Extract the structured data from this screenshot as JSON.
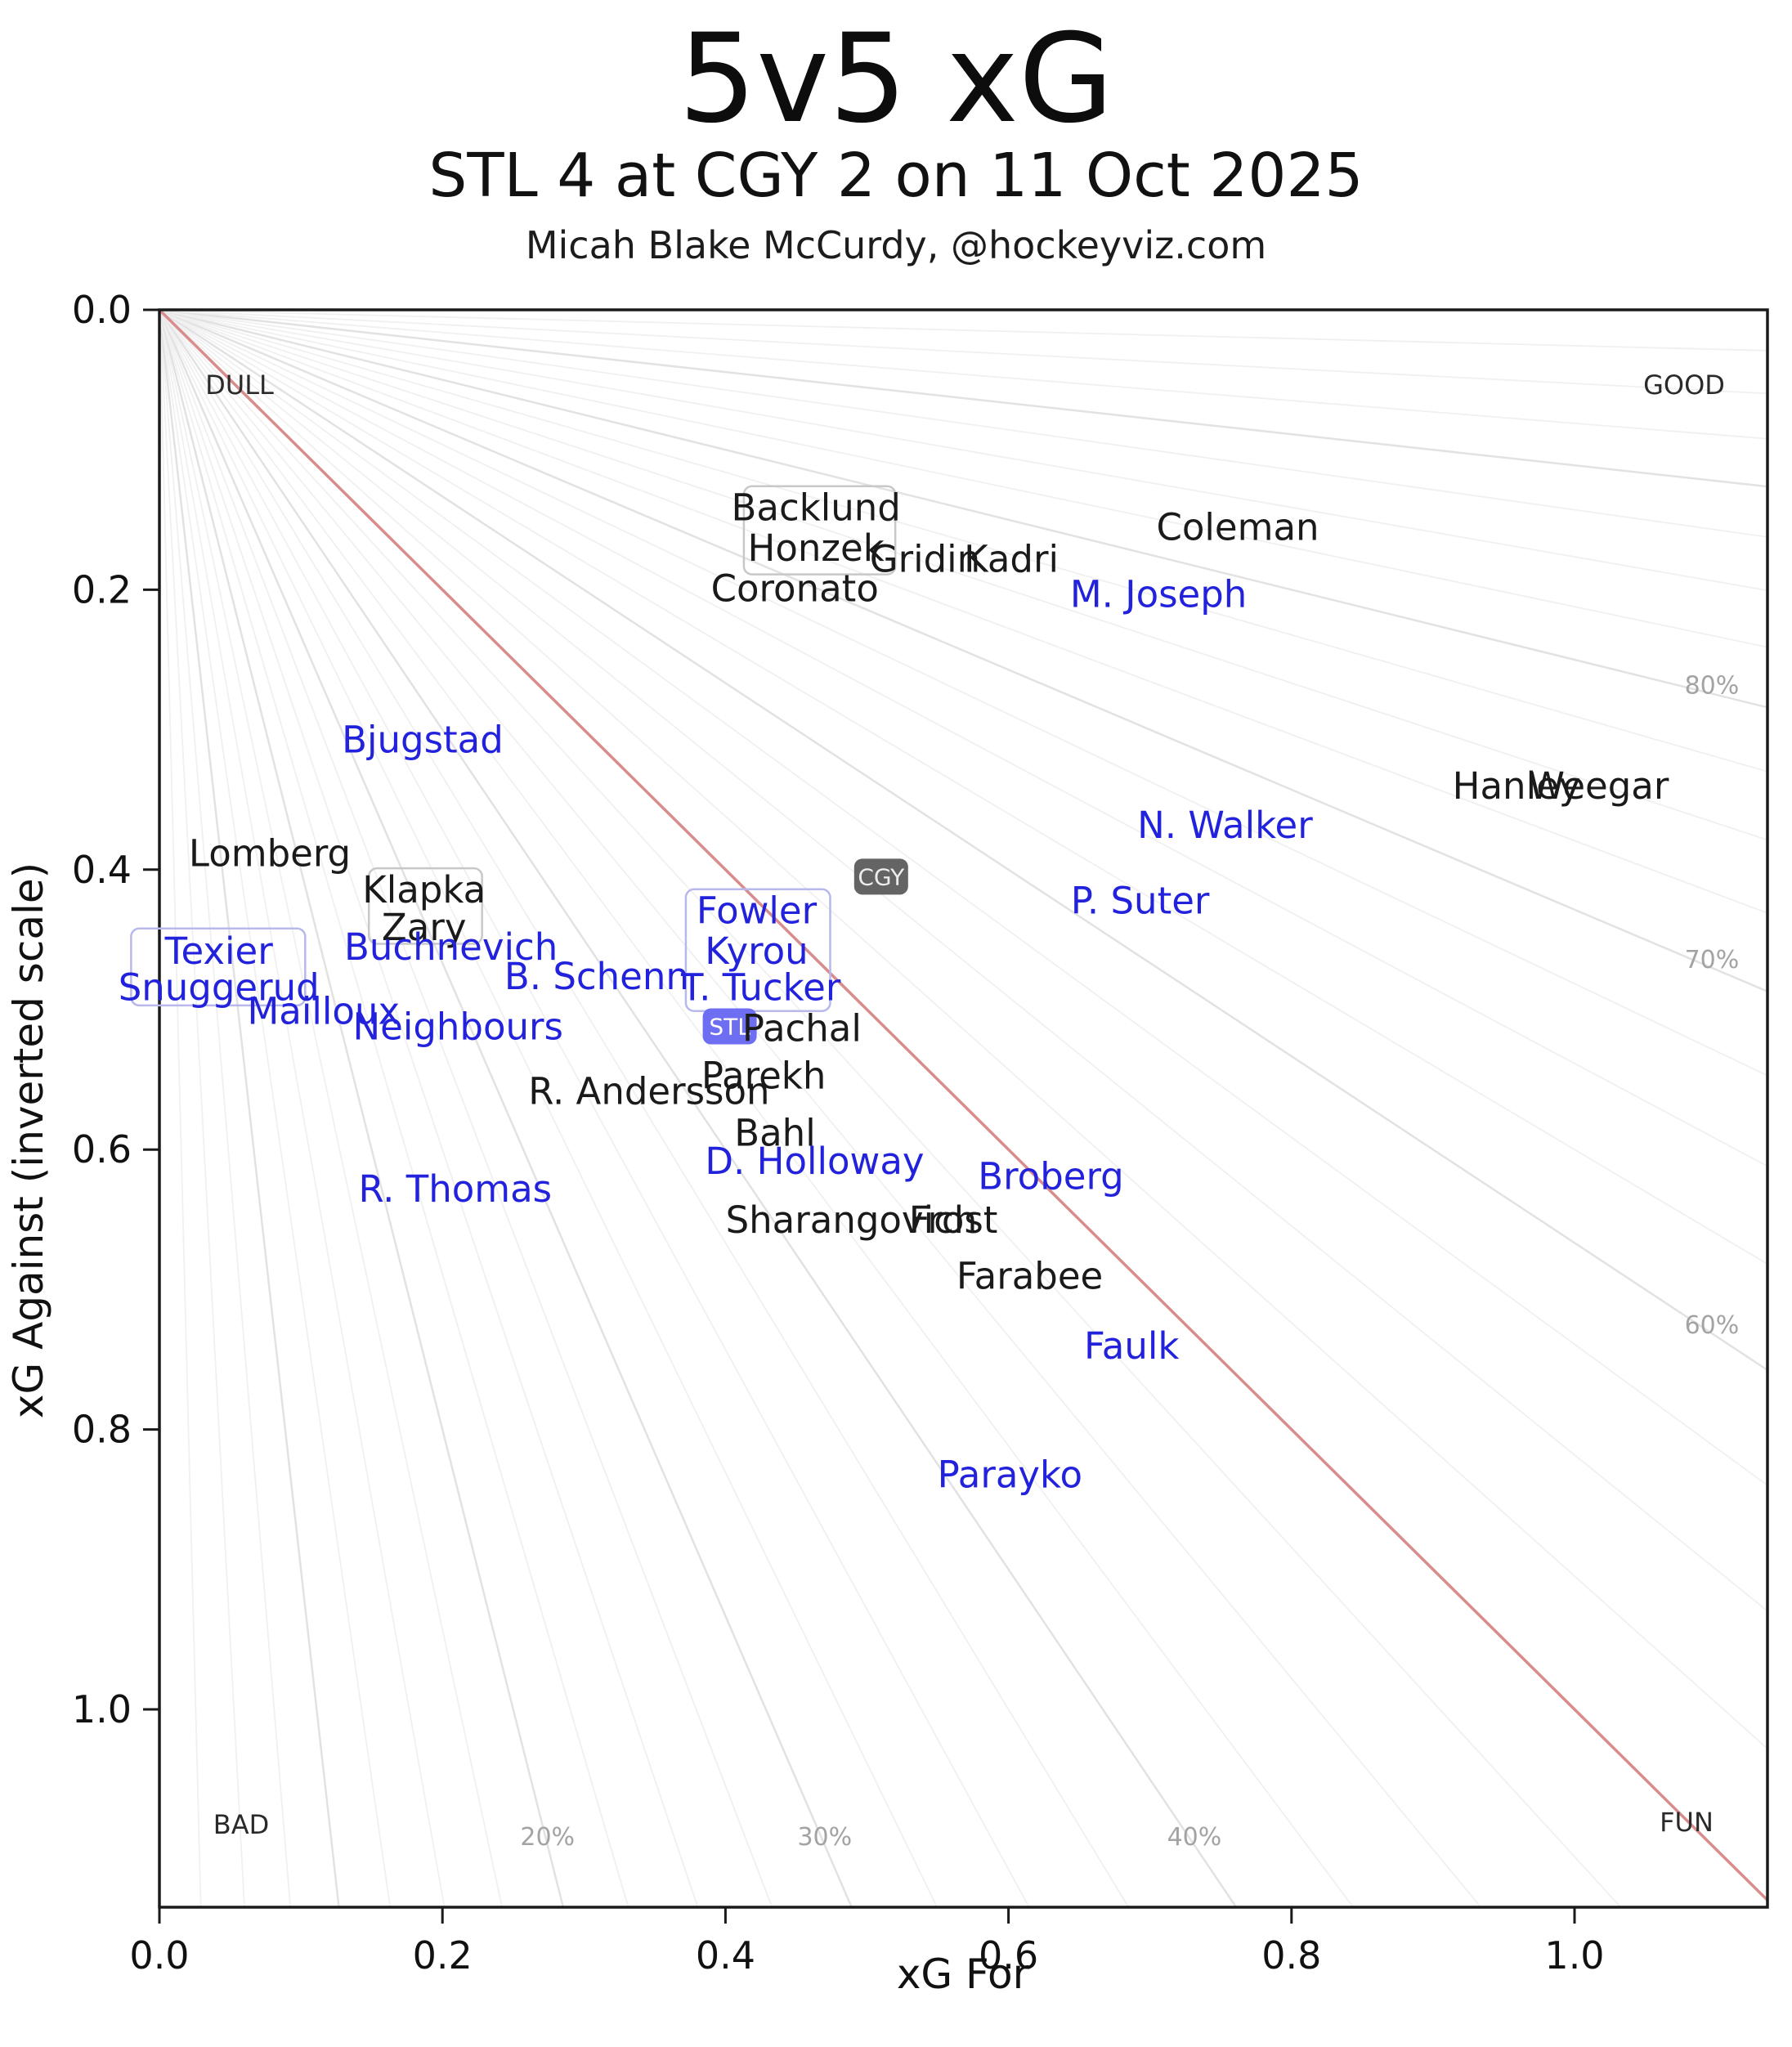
{
  "header": {
    "title": "5v5 xG",
    "subtitle": "STL 4 at CGY 2 on 11 Oct 2025",
    "attribution": "Micah Blake McCurdy, @hockeyviz.com"
  },
  "chart_data": {
    "type": "scatter",
    "title": "5v5 xG",
    "subtitle": "STL 4 at CGY 2 on 11 Oct 2025",
    "xlabel": "xG For",
    "ylabel": "xG Against (inverted scale)",
    "xlim": [
      0,
      1.137
    ],
    "ylim": [
      0,
      1.141
    ],
    "y_axis_inverted": true,
    "x_ticks": [
      0.0,
      0.2,
      0.4,
      0.6,
      0.8,
      1.0
    ],
    "y_ticks": [
      0.0,
      0.2,
      0.4,
      0.6,
      0.8,
      1.0
    ],
    "corner_labels": {
      "top_left": "DULL",
      "top_right": "GOOD",
      "bottom_left": "BAD",
      "bottom_right": "FUN"
    },
    "fan": {
      "step_pct": 2.5,
      "mid_pct": 50,
      "labeled_bottom": [
        20,
        30,
        40
      ],
      "labeled_right": [
        60,
        70,
        80
      ],
      "minor_color": "#f0f0f0",
      "major_color": "#e2e2e2",
      "mid_color": "#d98c8c",
      "label_color": "#a3a3a3"
    },
    "label_colors": {
      "CGY": "#1a1a1a",
      "STL": "#2222dd"
    },
    "teams": [
      {
        "code": "CGY",
        "x": 0.51,
        "y": 0.405,
        "box_color": "#646464",
        "text_color": "#ededed"
      },
      {
        "code": "STL",
        "x": 0.403,
        "y": 0.512,
        "box_color": "#6e6ef2",
        "text_color": "#ffffff"
      }
    ],
    "groups": [
      {
        "id": "backlund-honzek",
        "members": "Backlund, Honzek",
        "team": "CGY",
        "x0": 0.413,
        "y0": 0.126,
        "x1": 0.52,
        "y1": 0.189,
        "color": "#c8c8c8"
      },
      {
        "id": "klapka-zary",
        "members": "Klapka, Zary",
        "team": "CGY",
        "x0": 0.148,
        "y0": 0.399,
        "x1": 0.228,
        "y1": 0.453,
        "color": "#c8c8c8"
      },
      {
        "id": "texier-snuggerud",
        "members": "Texier, Snuggerud",
        "team": "STL",
        "x0": -0.02,
        "y0": 0.442,
        "x1": 0.103,
        "y1": 0.497,
        "color": "#b8b8ec"
      },
      {
        "id": "fowler-kyrou-tucker",
        "members": "Fowler, Kyrou, T. Tucker",
        "team": "STL",
        "x0": 0.372,
        "y0": 0.414,
        "x1": 0.474,
        "y1": 0.501,
        "color": "#b8b8ec"
      }
    ],
    "players": [
      {
        "name": "Backlund",
        "team": "CGY",
        "x": 0.464,
        "y": 0.141
      },
      {
        "name": "Honzek",
        "team": "CGY",
        "x": 0.464,
        "y": 0.17
      },
      {
        "name": "Gridin",
        "team": "CGY",
        "x": 0.541,
        "y": 0.178
      },
      {
        "name": "Kadri",
        "team": "CGY",
        "x": 0.602,
        "y": 0.178
      },
      {
        "name": "Coronato",
        "team": "CGY",
        "x": 0.449,
        "y": 0.199
      },
      {
        "name": "Coleman",
        "team": "CGY",
        "x": 0.762,
        "y": 0.155
      },
      {
        "name": "Hanley",
        "team": "CGY",
        "x": 0.959,
        "y": 0.34
      },
      {
        "name": "Weegar",
        "team": "CGY",
        "x": 1.017,
        "y": 0.34
      },
      {
        "name": "Lomberg",
        "team": "CGY",
        "x": 0.078,
        "y": 0.388
      },
      {
        "name": "Klapka",
        "team": "CGY",
        "x": 0.187,
        "y": 0.414
      },
      {
        "name": "Zary",
        "team": "CGY",
        "x": 0.187,
        "y": 0.441
      },
      {
        "name": "Pachal",
        "team": "CGY",
        "x": 0.454,
        "y": 0.513
      },
      {
        "name": "Parekh",
        "team": "CGY",
        "x": 0.427,
        "y": 0.547
      },
      {
        "name": "R. Andersson",
        "team": "CGY",
        "x": 0.346,
        "y": 0.558
      },
      {
        "name": "Bahl",
        "team": "CGY",
        "x": 0.435,
        "y": 0.588
      },
      {
        "name": "Sharangovich",
        "team": "CGY",
        "x": 0.489,
        "y": 0.65
      },
      {
        "name": "Frost",
        "team": "CGY",
        "x": 0.561,
        "y": 0.65
      },
      {
        "name": "Farabee",
        "team": "CGY",
        "x": 0.615,
        "y": 0.69
      },
      {
        "name": "M. Joseph",
        "team": "STL",
        "x": 0.706,
        "y": 0.203
      },
      {
        "name": "Bjugstad",
        "team": "STL",
        "x": 0.186,
        "y": 0.307
      },
      {
        "name": "N. Walker",
        "team": "STL",
        "x": 0.753,
        "y": 0.368
      },
      {
        "name": "P. Suter",
        "team": "STL",
        "x": 0.693,
        "y": 0.422
      },
      {
        "name": "Texier",
        "team": "STL",
        "x": 0.042,
        "y": 0.458
      },
      {
        "name": "Snuggerud",
        "team": "STL",
        "x": 0.042,
        "y": 0.484
      },
      {
        "name": "Buchnevich",
        "team": "STL",
        "x": 0.206,
        "y": 0.455
      },
      {
        "name": "B. Schenn",
        "team": "STL",
        "x": 0.309,
        "y": 0.476
      },
      {
        "name": "Mailloux",
        "team": "STL",
        "x": 0.116,
        "y": 0.501
      },
      {
        "name": "Neighbours",
        "team": "STL",
        "x": 0.211,
        "y": 0.512
      },
      {
        "name": "Fowler",
        "team": "STL",
        "x": 0.422,
        "y": 0.429
      },
      {
        "name": "Kyrou",
        "team": "STL",
        "x": 0.422,
        "y": 0.458
      },
      {
        "name": "T. Tucker",
        "team": "STL",
        "x": 0.425,
        "y": 0.484
      },
      {
        "name": "D. Holloway",
        "team": "STL",
        "x": 0.463,
        "y": 0.608
      },
      {
        "name": "Broberg",
        "team": "STL",
        "x": 0.63,
        "y": 0.619
      },
      {
        "name": "R. Thomas",
        "team": "STL",
        "x": 0.209,
        "y": 0.628
      },
      {
        "name": "Faulk",
        "team": "STL",
        "x": 0.687,
        "y": 0.74
      },
      {
        "name": "Parayko",
        "team": "STL",
        "x": 0.601,
        "y": 0.832
      }
    ]
  }
}
